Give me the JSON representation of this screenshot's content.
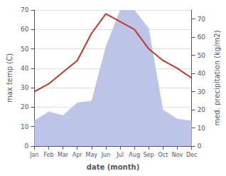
{
  "chart_data": {
    "type": "line",
    "categories": [
      "Jan",
      "Feb",
      "Mar",
      "Apr",
      "May",
      "Jun",
      "Jul",
      "Aug",
      "Sep",
      "Oct",
      "Nov",
      "Dec"
    ],
    "series": [
      {
        "type": "area",
        "color": "#bcc5e8",
        "axis": "y2",
        "values": [
          14,
          19,
          17,
          24,
          25,
          55,
          75,
          75,
          65,
          20,
          15,
          14
        ]
      },
      {
        "type": "line",
        "color": "#c0392b",
        "values": [
          28,
          32,
          38,
          44,
          58,
          68,
          64,
          60,
          50,
          44,
          40,
          35
        ]
      }
    ],
    "xlabel": "date (month)",
    "ylabel": "max temp (C)",
    "y2label": "med. precipitation (kg/m2)",
    "ylim": [
      0,
      70
    ],
    "yticks": [
      0,
      10,
      20,
      30,
      40,
      50,
      60,
      70
    ],
    "y2lim": [
      0,
      75
    ],
    "y2ticks": [
      0,
      10,
      20,
      30,
      40,
      50,
      60,
      70
    ],
    "grid": true
  }
}
